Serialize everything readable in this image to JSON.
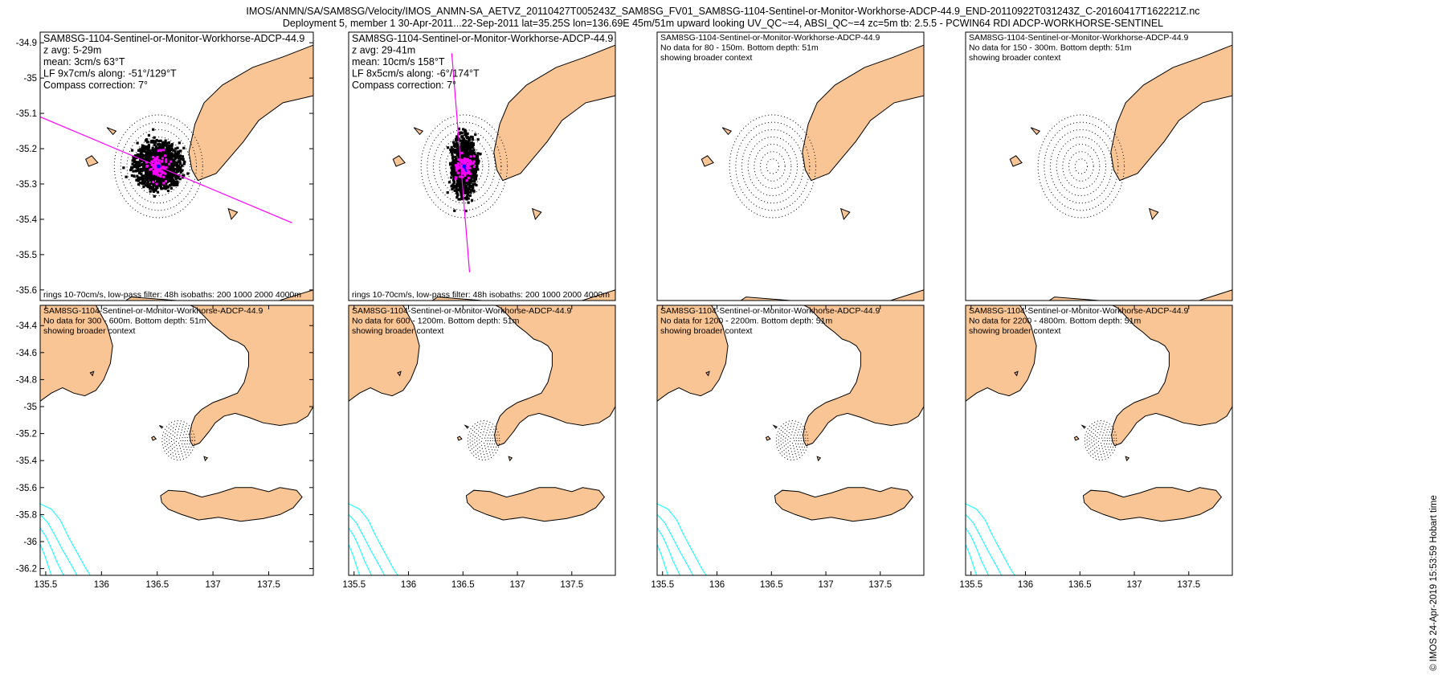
{
  "header": {
    "line1": "IMOS/ANMN/SA/SAM8SG/Velocity/IMOS_ANMN-SA_AETVZ_20110427T005243Z_SAM8SG_FV01_SAM8SG-1104-Sentinel-or-Monitor-Workhorse-ADCP-44.9_END-20110922T031243Z_C-20160417T162221Z.nc",
    "line2": "Deployment 5, member 1 30-Apr-2011...22-Sep-2011 lat=35.25S lon=136.69E 45m/51m upward looking UV_QC~=4, ABSI_QC~=4 zc=5m tb: 2.5.5 - PCWIN64 RDI ADCP-WORKHORSE-SENTINEL"
  },
  "side_note": "© IMOS 24-Apr-2019 15:53:59 Hobart time",
  "colors": {
    "land": "#f9c594",
    "coast": "#000000",
    "isobath": "#00ffff",
    "scatter": "#000000",
    "lowpass": "#ff00ff",
    "axis_line": "#ff00ff",
    "mean": "#0000ff",
    "ring": "#000000"
  },
  "chart_data": [
    {
      "type": "scatter",
      "panel": 1,
      "title": "SAM8SG-1104-Sentinel-or-Monitor-Workhorse-ADCP-44.9",
      "info": [
        "z avg: 5-29m",
        "mean: 3cm/s 63°T",
        "LF 9x7cm/s along: -51°/129°T",
        "Compass correction: 7°"
      ],
      "footer": "rings 10-70cm/s, low-pass filter: 48h isobaths: 200 1000 2000 4000m",
      "xlim": [
        136.3,
        137.2
      ],
      "ylim": [
        -35.63,
        -34.87
      ],
      "yticks": [
        -34.9,
        -35,
        -35.1,
        -35.2,
        -35.3,
        -35.4,
        -35.5,
        -35.6
      ],
      "xticks": [],
      "center": [
        136.69,
        -35.25
      ],
      "ring_count": 7,
      "ring_step_deg": 0.0208,
      "cloud_radii_deg": [
        0.085,
        0.072
      ],
      "cloud_points": 1200,
      "lowpass_radius_deg": 0.03,
      "axis_line": [
        [
          136.3,
          -35.11
        ],
        [
          137.13,
          -35.41
        ]
      ],
      "mean_velocity": {
        "speed_cm_s": 3,
        "direction_degT": 63
      }
    },
    {
      "type": "scatter",
      "panel": 2,
      "title": "SAM8SG-1104-Sentinel-or-Monitor-Workhorse-ADCP-44.9",
      "info": [
        "z avg: 29-41m",
        "mean: 10cm/s 158°T",
        "LF 8x5cm/s along: -6°/174°T",
        "Compass correction: 7°"
      ],
      "footer": "rings 10-70cm/s, low-pass filter: 48h isobaths: 200 1000 2000 4000m",
      "xlim": [
        136.3,
        137.2
      ],
      "ylim": [
        -35.63,
        -34.87
      ],
      "yticks": [],
      "xticks": [],
      "center": [
        136.69,
        -35.25
      ],
      "ring_count": 7,
      "ring_step_deg": 0.0208,
      "cloud_radii_deg": [
        0.046,
        0.098
      ],
      "cloud_points": 1000,
      "lowpass_radius_deg": 0.028,
      "axis_line": [
        [
          136.648,
          -34.93
        ],
        [
          136.708,
          -35.55
        ]
      ],
      "mean_velocity": {
        "speed_cm_s": 10,
        "direction_degT": 158
      }
    },
    {
      "type": "map",
      "panel": 3,
      "title": "SAM8SG-1104-Sentinel-or-Monitor-Workhorse-ADCP-44.9",
      "info": [
        "No data for 80 - 150m. Bottom depth: 51m",
        "showing broader context"
      ],
      "xlim": [
        136.3,
        137.2
      ],
      "ylim": [
        -35.63,
        -34.87
      ],
      "yticks": [],
      "xticks": [],
      "center": [
        136.69,
        -35.25
      ],
      "ring_count": 7,
      "ring_step_deg": 0.0208
    },
    {
      "type": "map",
      "panel": 4,
      "title": "SAM8SG-1104-Sentinel-or-Monitor-Workhorse-ADCP-44.9",
      "info": [
        "No data for 150 - 300m. Bottom depth: 51m",
        "showing broader context"
      ],
      "xlim": [
        136.3,
        137.2
      ],
      "ylim": [
        -35.63,
        -34.87
      ],
      "yticks": [],
      "xticks": [],
      "center": [
        136.69,
        -35.25
      ],
      "ring_count": 7,
      "ring_step_deg": 0.0208
    },
    {
      "type": "map",
      "panel": 5,
      "title": "SAM8SG-1104-Sentinel-or-Monitor-Workhorse-ADCP-44.9",
      "info": [
        "No data for 300 - 600m. Bottom depth: 51m",
        "showing broader context"
      ],
      "xlim": [
        135.45,
        137.9
      ],
      "ylim": [
        -36.25,
        -34.25
      ],
      "yticks": [
        -34.4,
        -34.6,
        -34.8,
        -35,
        -35.2,
        -35.4,
        -35.6,
        -35.8,
        -36,
        -36.2
      ],
      "xticks": [
        135.5,
        136,
        136.5,
        137,
        137.5
      ],
      "center": [
        136.69,
        -35.25
      ],
      "ring_count": 7,
      "ring_step_deg": 0.0208
    },
    {
      "type": "map",
      "panel": 6,
      "title": "SAM8SG-1104-Sentinel-or-Monitor-Workhorse-ADCP-44.9",
      "info": [
        "No data for 600 - 1200m. Bottom depth: 51m",
        "showing broader context"
      ],
      "xlim": [
        135.45,
        137.9
      ],
      "ylim": [
        -36.25,
        -34.25
      ],
      "yticks": [],
      "xticks": [
        135.5,
        136,
        136.5,
        137,
        137.5
      ],
      "center": [
        136.69,
        -35.25
      ],
      "ring_count": 7,
      "ring_step_deg": 0.0208
    },
    {
      "type": "map",
      "panel": 7,
      "title": "SAM8SG-1104-Sentinel-or-Monitor-Workhorse-ADCP-44.9",
      "info": [
        "No data for 1200 - 2200m. Bottom depth: 51m",
        "showing broader context"
      ],
      "xlim": [
        135.45,
        137.9
      ],
      "ylim": [
        -36.25,
        -34.25
      ],
      "yticks": [],
      "xticks": [
        135.5,
        136,
        136.5,
        137,
        137.5
      ],
      "center": [
        136.69,
        -35.25
      ],
      "ring_count": 7,
      "ring_step_deg": 0.0208
    },
    {
      "type": "map",
      "panel": 8,
      "title": "SAM8SG-1104-Sentinel-or-Monitor-Workhorse-ADCP-44.9",
      "info": [
        "No data for 2200 - 4800m. Bottom depth: 51m",
        "showing broader context"
      ],
      "xlim": [
        135.45,
        137.9
      ],
      "ylim": [
        -36.25,
        -34.25
      ],
      "yticks": [],
      "xticks": [
        135.5,
        136,
        136.5,
        137,
        137.5
      ],
      "center": [
        136.69,
        -35.25
      ],
      "ring_count": 7,
      "ring_step_deg": 0.0208
    }
  ]
}
